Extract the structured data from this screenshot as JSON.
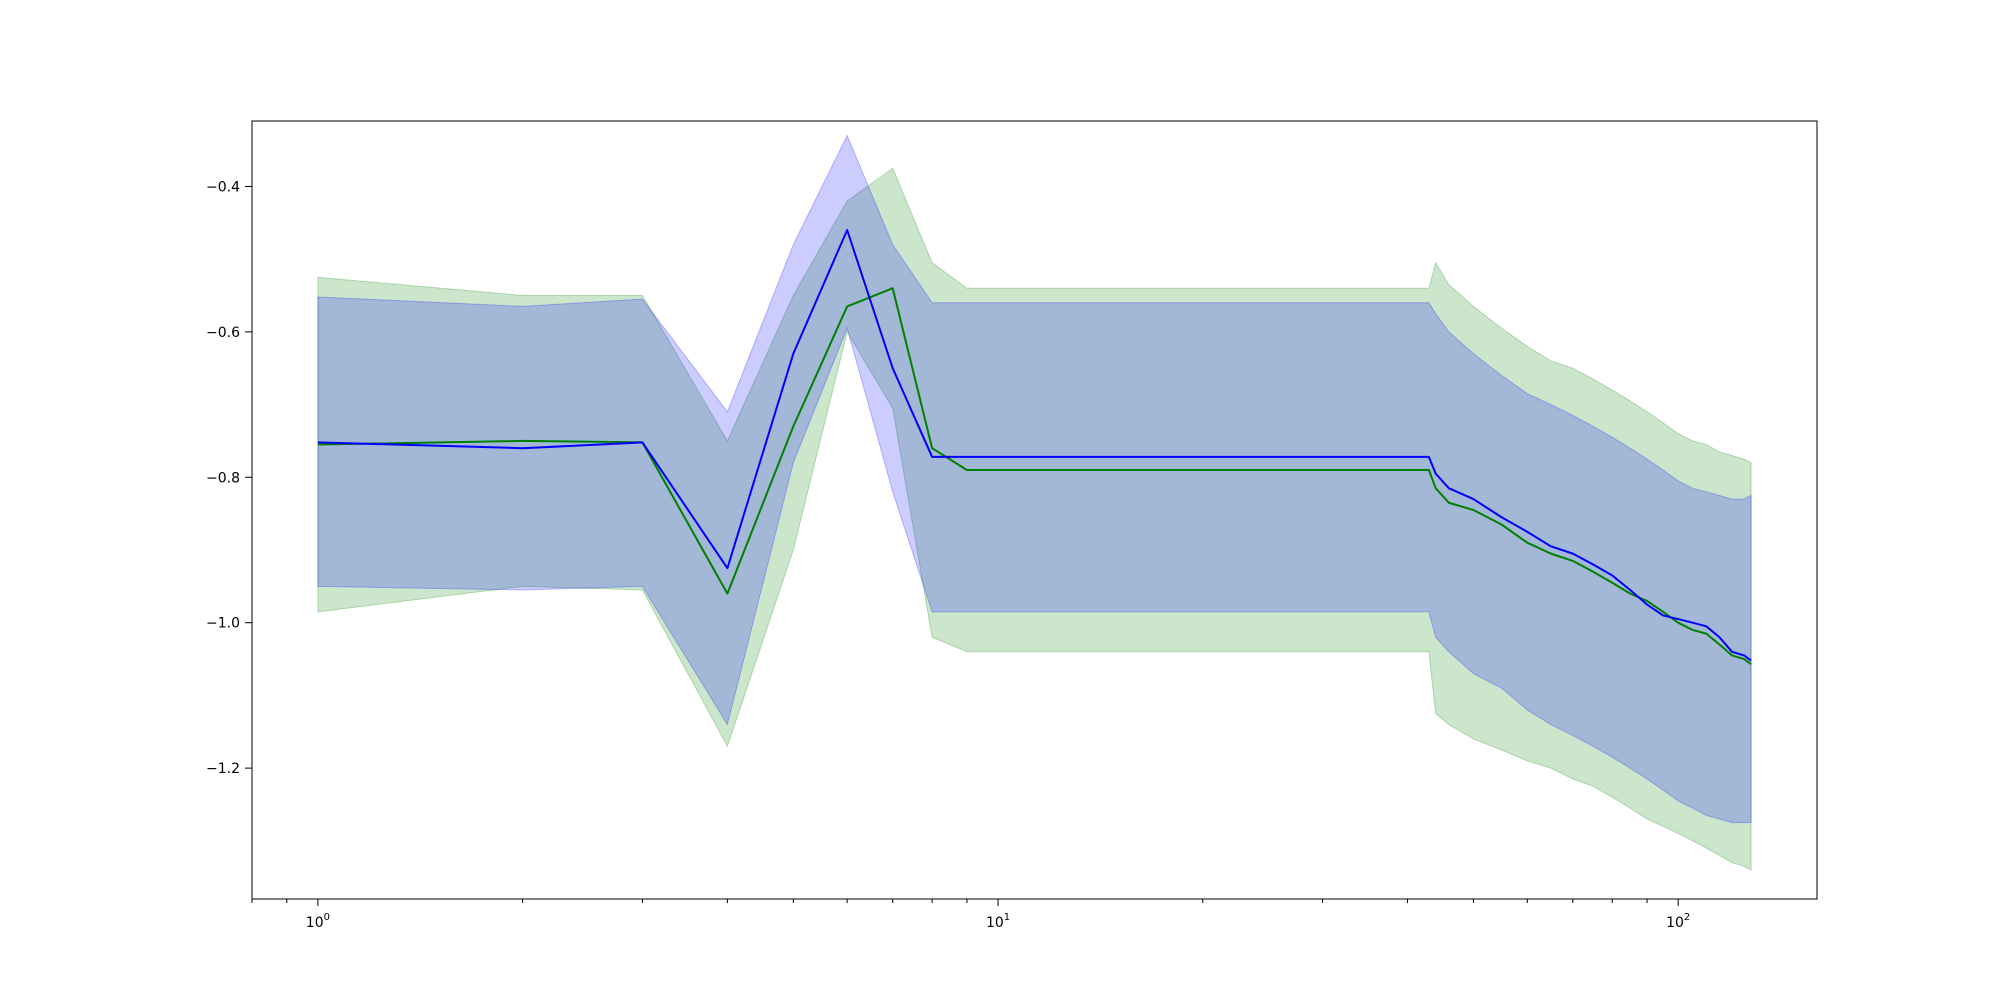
{
  "chart_data": {
    "type": "line",
    "title": "",
    "xlabel": "",
    "ylabel": "",
    "x_scale": "log",
    "xlim": [
      0.8,
      160
    ],
    "ylim": [
      -1.38,
      -0.31
    ],
    "x_ticks": [
      {
        "value": 1,
        "base": "10",
        "exp": "0"
      },
      {
        "value": 10,
        "base": "10",
        "exp": "1"
      },
      {
        "value": 100,
        "base": "10",
        "exp": "2"
      }
    ],
    "y_ticks": [
      {
        "value": -0.4,
        "label": "−0.4"
      },
      {
        "value": -0.6,
        "label": "−0.6"
      },
      {
        "value": -0.8,
        "label": "−0.8"
      },
      {
        "value": -1.0,
        "label": "−1.0"
      },
      {
        "value": -1.2,
        "label": "−1.2"
      }
    ],
    "grid": false,
    "series": [
      {
        "color": "#008000",
        "band_color": "#008000",
        "band_opacity": 0.2,
        "x": [
          1,
          2,
          3,
          4,
          5,
          6,
          7,
          8,
          9,
          43,
          44,
          46,
          50,
          55,
          60,
          65,
          70,
          75,
          80,
          85,
          90,
          95,
          100,
          105,
          110,
          115,
          120,
          125,
          128
        ],
        "y": [
          -0.755,
          -0.75,
          -0.752,
          -0.96,
          -0.73,
          -0.565,
          -0.54,
          -0.76,
          -0.79,
          -0.79,
          -0.815,
          -0.835,
          -0.845,
          -0.865,
          -0.89,
          -0.905,
          -0.915,
          -0.93,
          -0.945,
          -0.96,
          -0.97,
          -0.985,
          -1.0,
          -1.01,
          -1.015,
          -1.03,
          -1.045,
          -1.05,
          -1.057
        ],
        "upper": [
          -0.525,
          -0.55,
          -0.55,
          -0.75,
          -0.55,
          -0.42,
          -0.375,
          -0.505,
          -0.54,
          -0.54,
          -0.505,
          -0.535,
          -0.565,
          -0.595,
          -0.62,
          -0.64,
          -0.65,
          -0.665,
          -0.68,
          -0.695,
          -0.71,
          -0.725,
          -0.74,
          -0.75,
          -0.755,
          -0.765,
          -0.77,
          -0.775,
          -0.78
        ],
        "lower": [
          -0.985,
          -0.95,
          -0.955,
          -1.17,
          -0.9,
          -0.6,
          -0.705,
          -1.02,
          -1.04,
          -1.04,
          -1.125,
          -1.14,
          -1.16,
          -1.175,
          -1.19,
          -1.2,
          -1.215,
          -1.225,
          -1.24,
          -1.255,
          -1.27,
          -1.28,
          -1.29,
          -1.3,
          -1.31,
          -1.32,
          -1.33,
          -1.335,
          -1.34
        ]
      },
      {
        "color": "#0000ff",
        "band_color": "#0000ff",
        "band_opacity": 0.2,
        "x": [
          1,
          2,
          3,
          4,
          5,
          6,
          7,
          8,
          9,
          43,
          44,
          46,
          50,
          55,
          60,
          65,
          70,
          75,
          80,
          85,
          90,
          95,
          100,
          105,
          110,
          115,
          120,
          125,
          128
        ],
        "y": [
          -0.752,
          -0.76,
          -0.752,
          -0.925,
          -0.63,
          -0.46,
          -0.65,
          -0.772,
          -0.772,
          -0.772,
          -0.795,
          -0.815,
          -0.83,
          -0.855,
          -0.875,
          -0.895,
          -0.905,
          -0.92,
          -0.935,
          -0.955,
          -0.975,
          -0.99,
          -0.995,
          -1.0,
          -1.005,
          -1.02,
          -1.04,
          -1.045,
          -1.052
        ],
        "upper": [
          -0.552,
          -0.565,
          -0.555,
          -0.71,
          -0.48,
          -0.33,
          -0.48,
          -0.56,
          -0.56,
          -0.56,
          -0.575,
          -0.6,
          -0.63,
          -0.66,
          -0.685,
          -0.7,
          -0.715,
          -0.73,
          -0.745,
          -0.76,
          -0.775,
          -0.79,
          -0.805,
          -0.815,
          -0.82,
          -0.825,
          -0.83,
          -0.83,
          -0.825
        ],
        "lower": [
          -0.95,
          -0.955,
          -0.95,
          -1.14,
          -0.78,
          -0.595,
          -0.82,
          -0.985,
          -0.985,
          -0.985,
          -1.02,
          -1.04,
          -1.07,
          -1.09,
          -1.12,
          -1.14,
          -1.155,
          -1.17,
          -1.185,
          -1.2,
          -1.215,
          -1.23,
          -1.245,
          -1.255,
          -1.265,
          -1.27,
          -1.275,
          -1.275,
          -1.275
        ]
      }
    ]
  }
}
